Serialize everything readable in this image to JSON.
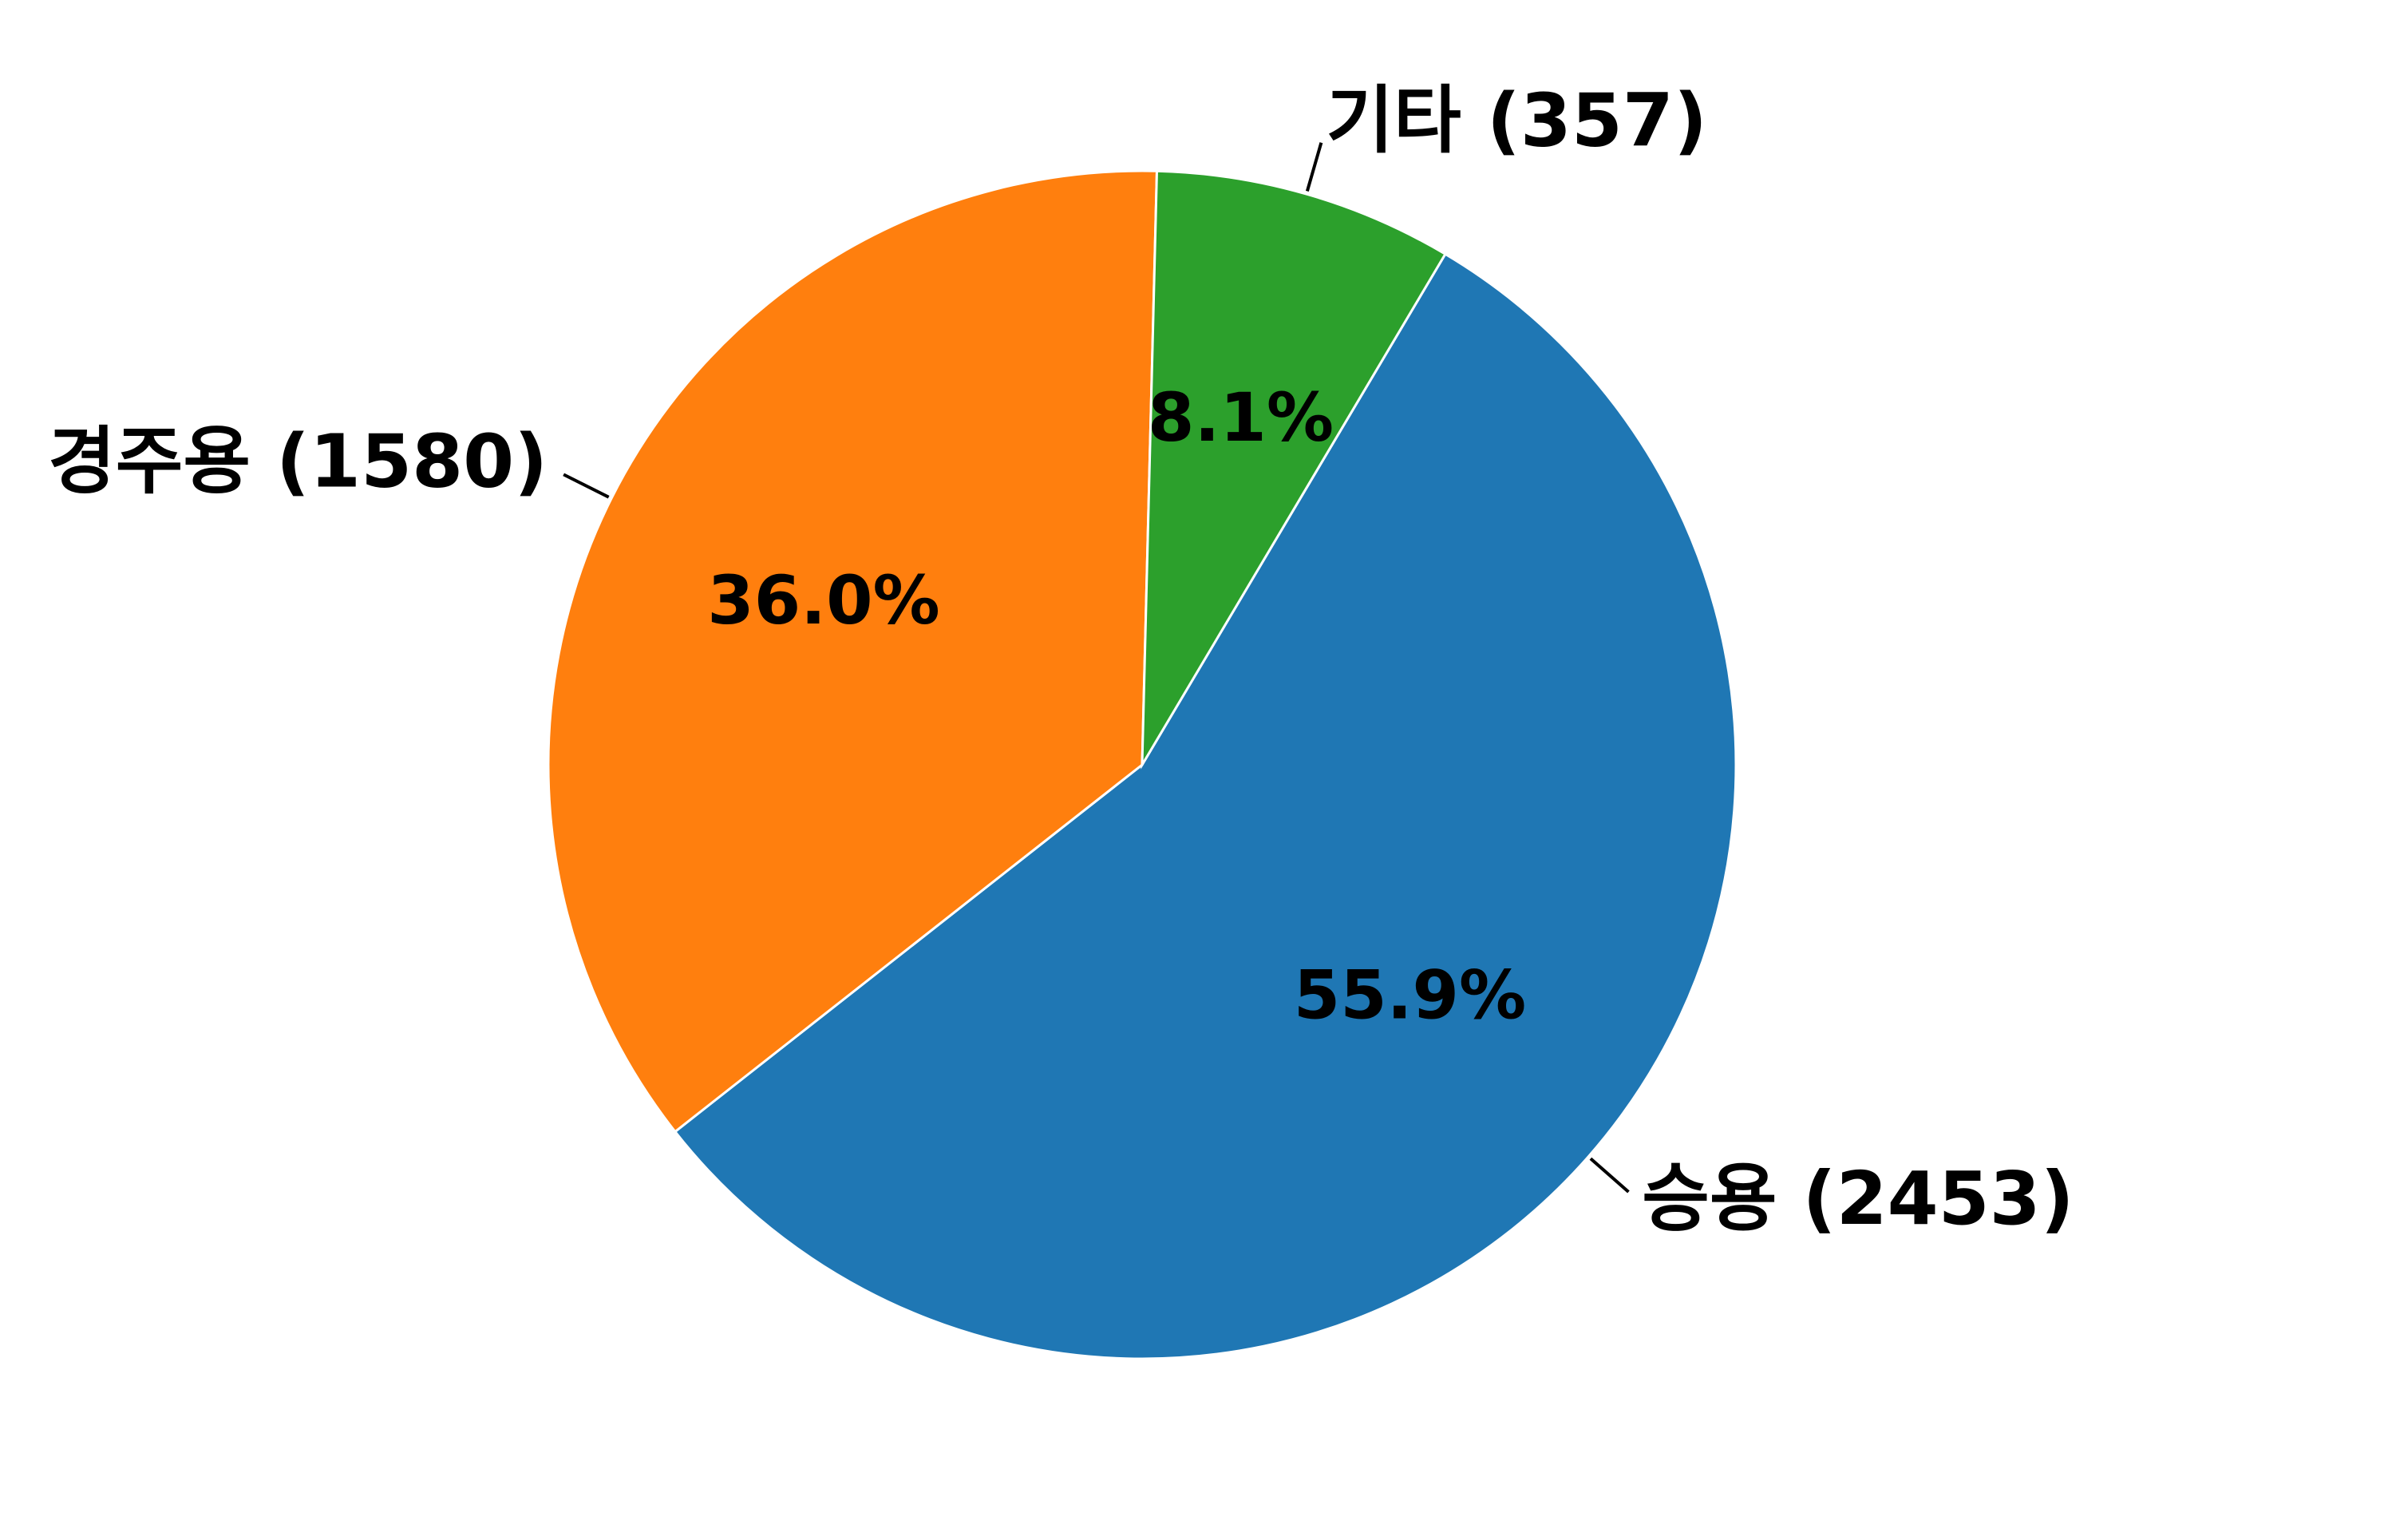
{
  "chart_data": {
    "type": "pie",
    "categories": [
      "승용",
      "경주용",
      "기타"
    ],
    "values": [
      2453,
      1580,
      357
    ],
    "percent_labels": [
      "55.9%",
      "36.0%",
      "8.1%"
    ],
    "category_labels": [
      "승용 (2453)",
      "경주용 (1580)",
      "기타 (357)"
    ],
    "colors": [
      "#1f77b4",
      "#ff7f0e",
      "#2ca02c"
    ],
    "start_angle_deg": 59.3,
    "direction": "clockwise",
    "legend": "none"
  }
}
